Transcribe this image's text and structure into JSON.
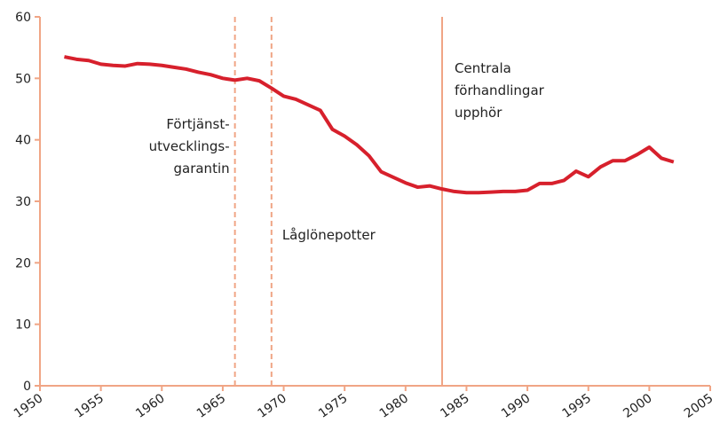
{
  "chart_data": {
    "type": "line",
    "x": [
      1952,
      1953,
      1954,
      1955,
      1956,
      1957,
      1958,
      1959,
      1960,
      1961,
      1962,
      1963,
      1964,
      1965,
      1966,
      1967,
      1968,
      1969,
      1970,
      1971,
      1972,
      1973,
      1974,
      1975,
      1976,
      1977,
      1978,
      1979,
      1980,
      1981,
      1982,
      1983,
      1984,
      1985,
      1986,
      1987,
      1988,
      1989,
      1990,
      1991,
      1992,
      1993,
      1994,
      1995,
      1996,
      1997,
      1998,
      1999,
      2000,
      2001,
      2002
    ],
    "values": [
      53.5,
      53.1,
      52.9,
      52.3,
      52.1,
      52.0,
      52.4,
      52.3,
      52.1,
      51.8,
      51.5,
      51.0,
      50.6,
      50.0,
      49.7,
      50.0,
      49.6,
      48.4,
      47.1,
      46.6,
      45.7,
      44.8,
      41.7,
      40.6,
      39.2,
      37.4,
      34.8,
      33.9,
      33.0,
      32.3,
      32.5,
      32.0,
      31.6,
      31.4,
      31.4,
      31.5,
      31.6,
      31.6,
      31.8,
      32.9,
      32.9,
      33.4,
      34.9,
      34.0,
      35.6,
      36.6,
      36.6,
      37.6,
      38.8,
      37.0,
      36.4
    ],
    "color": "#d7202c",
    "axis_color": "#f0a585",
    "xlim": [
      1950,
      2005
    ],
    "xticks": [
      1950,
      1955,
      1960,
      1965,
      1970,
      1975,
      1980,
      1985,
      1990,
      1995,
      2000,
      2005
    ],
    "ylim": [
      0,
      60
    ],
    "yticks": [
      0,
      10,
      20,
      30,
      40,
      50,
      60
    ],
    "grid": false,
    "annotations": [
      {
        "x": 1966,
        "style": "dashed",
        "text": [
          "Förtjänst-",
          "utvecklings-",
          "garantin"
        ]
      },
      {
        "x": 1969,
        "style": "dashed",
        "text": [
          "Låglönepotter"
        ]
      },
      {
        "x": 1983,
        "style": "solid",
        "text": [
          "Centrala",
          "förhandlingar",
          "upphör"
        ]
      }
    ]
  }
}
